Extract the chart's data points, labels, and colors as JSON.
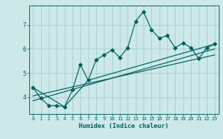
{
  "title": "",
  "xlabel": "Humidex (Indice chaleur)",
  "ylabel": "",
  "bg_color": "#cce8e8",
  "grid_color": "#aad0d0",
  "line_color": "#006060",
  "xlim": [
    -0.5,
    23.5
  ],
  "ylim": [
    3.3,
    7.8
  ],
  "yticks": [
    4,
    5,
    6,
    7
  ],
  "xticks": [
    0,
    1,
    2,
    3,
    4,
    5,
    6,
    7,
    8,
    9,
    10,
    11,
    12,
    13,
    14,
    15,
    16,
    17,
    18,
    19,
    20,
    21,
    22,
    23
  ],
  "main_x": [
    0,
    1,
    2,
    3,
    4,
    5,
    6,
    7,
    8,
    9,
    10,
    11,
    12,
    13,
    14,
    15,
    16,
    17,
    18,
    19,
    20,
    21,
    22,
    23
  ],
  "main_y": [
    4.4,
    3.95,
    3.65,
    3.65,
    3.6,
    4.3,
    5.35,
    4.7,
    5.55,
    5.75,
    5.95,
    5.65,
    6.05,
    7.15,
    7.55,
    6.8,
    6.45,
    6.55,
    6.05,
    6.25,
    6.05,
    5.6,
    6.05,
    6.2
  ],
  "line2_x": [
    0,
    4,
    7,
    23
  ],
  "line2_y": [
    4.4,
    3.6,
    4.7,
    6.2
  ],
  "line3_x": [
    0,
    23
  ],
  "line3_y": [
    4.05,
    5.75
  ],
  "line4_x": [
    0,
    23
  ],
  "line4_y": [
    3.85,
    6.0
  ],
  "marker_size": 2.5,
  "linewidth": 0.9
}
